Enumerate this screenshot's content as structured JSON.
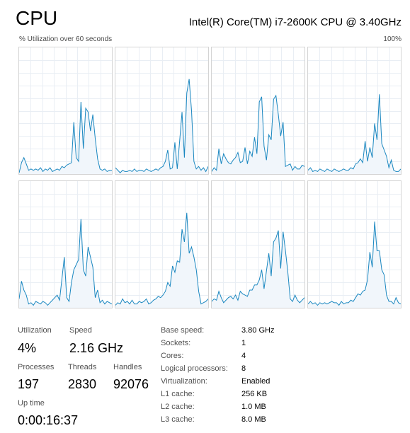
{
  "header": {
    "title": "CPU",
    "cpu_model": "Intel(R) Core(TM) i7-2600K CPU @ 3.40GHz"
  },
  "graph": {
    "caption": "% Utilization over 60 seconds",
    "max_label": "100%",
    "line_color": "#1a87c0",
    "fill_color": "#f1f6fb",
    "grid_color": "#e9eef4",
    "y_range": [
      0,
      100
    ],
    "cores": [
      {
        "utilization": [
          1,
          9,
          13,
          8,
          3,
          4,
          3,
          4,
          3,
          5,
          2,
          4,
          3,
          5,
          2,
          3,
          4,
          3,
          6,
          5,
          7,
          8,
          9,
          41,
          13,
          10,
          57,
          20,
          52,
          49,
          34,
          47,
          28,
          12,
          4,
          3,
          4,
          2,
          3,
          3
        ]
      },
      {
        "utilization": [
          5,
          3,
          1,
          3,
          2,
          2,
          3,
          2,
          4,
          2,
          3,
          3,
          2,
          4,
          3,
          2,
          3,
          4,
          3,
          5,
          6,
          10,
          19,
          4,
          5,
          25,
          4,
          26,
          49,
          13,
          64,
          75,
          50,
          10,
          4,
          6,
          3,
          5,
          2,
          6
        ]
      },
      {
        "utilization": [
          2,
          5,
          3,
          20,
          8,
          16,
          12,
          9,
          8,
          11,
          13,
          17,
          9,
          10,
          21,
          8,
          18,
          14,
          29,
          16,
          57,
          61,
          22,
          11,
          31,
          27,
          59,
          62,
          47,
          30,
          41,
          6,
          7,
          8,
          3,
          6,
          4,
          4,
          7,
          6
        ]
      },
      {
        "utilization": [
          3,
          5,
          2,
          3,
          2,
          4,
          3,
          2,
          4,
          3,
          2,
          4,
          3,
          2,
          3,
          4,
          3,
          3,
          5,
          4,
          8,
          9,
          12,
          9,
          26,
          10,
          21,
          13,
          40,
          27,
          63,
          24,
          19,
          14,
          5,
          11,
          3,
          2,
          2,
          4
        ]
      },
      {
        "utilization": [
          7,
          21,
          14,
          10,
          3,
          4,
          2,
          5,
          4,
          3,
          5,
          4,
          2,
          4,
          6,
          8,
          10,
          6,
          23,
          40,
          8,
          5,
          20,
          30,
          34,
          38,
          70,
          30,
          25,
          48,
          40,
          32,
          8,
          14,
          4,
          6,
          3,
          5,
          4,
          3
        ]
      },
      {
        "utilization": [
          2,
          4,
          3,
          7,
          4,
          5,
          3,
          6,
          3,
          3,
          5,
          4,
          5,
          7,
          3,
          4,
          6,
          7,
          9,
          8,
          10,
          13,
          20,
          17,
          33,
          28,
          37,
          36,
          62,
          52,
          75,
          43,
          48,
          40,
          30,
          13,
          3,
          4,
          5,
          7
        ]
      },
      {
        "utilization": [
          5,
          7,
          6,
          13,
          8,
          4,
          6,
          8,
          9,
          7,
          10,
          6,
          13,
          11,
          10,
          9,
          14,
          14,
          18,
          18,
          22,
          30,
          15,
          29,
          43,
          25,
          52,
          55,
          61,
          31,
          60,
          45,
          28,
          7,
          5,
          10,
          6,
          4,
          6,
          8
        ]
      },
      {
        "utilization": [
          3,
          5,
          3,
          4,
          2,
          4,
          3,
          4,
          3,
          4,
          5,
          4,
          4,
          2,
          5,
          3,
          4,
          4,
          6,
          5,
          8,
          11,
          10,
          13,
          14,
          22,
          44,
          32,
          68,
          45,
          45,
          30,
          26,
          10,
          5,
          5,
          3,
          8,
          4,
          3
        ]
      }
    ]
  },
  "stats": {
    "utilization": {
      "label": "Utilization",
      "value": "4%"
    },
    "speed": {
      "label": "Speed",
      "value": "2.16 GHz"
    },
    "processes": {
      "label": "Processes",
      "value": "197"
    },
    "threads": {
      "label": "Threads",
      "value": "2830"
    },
    "handles": {
      "label": "Handles",
      "value": "92076"
    },
    "uptime": {
      "label": "Up time",
      "value": "0:00:16:37"
    }
  },
  "specs": [
    {
      "label": "Base speed:",
      "value": "3.80 GHz"
    },
    {
      "label": "Sockets:",
      "value": "1"
    },
    {
      "label": "Cores:",
      "value": "4"
    },
    {
      "label": "Logical processors:",
      "value": "8"
    },
    {
      "label": "Virtualization:",
      "value": "Enabled"
    },
    {
      "label": "L1 cache:",
      "value": "256 KB"
    },
    {
      "label": "L2 cache:",
      "value": "1.0 MB"
    },
    {
      "label": "L3 cache:",
      "value": "8.0 MB"
    }
  ]
}
